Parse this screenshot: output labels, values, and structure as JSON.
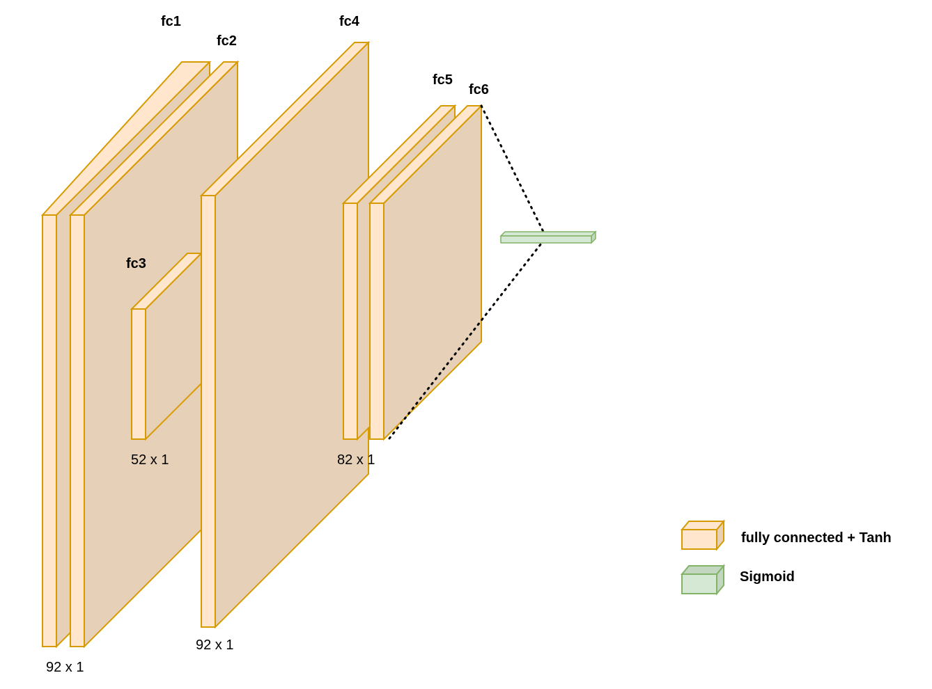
{
  "colors": {
    "fc_front": "#ffe6cc",
    "fc_side": "#e6d0b8",
    "fc_stroke": "#d79b00",
    "sigmoid_front": "#d5e8d4",
    "sigmoid_side": "#c2d6c0",
    "sigmoid_stroke": "#82b366",
    "connector": "#000000"
  },
  "layers": {
    "fc1": {
      "name": "fc1"
    },
    "fc2": {
      "name": "fc2"
    },
    "fc3": {
      "name": "fc3"
    },
    "fc4": {
      "name": "fc4"
    },
    "fc5": {
      "name": "fc5"
    },
    "fc6": {
      "name": "fc6"
    },
    "output": {
      "icon": "sigmoid-block"
    }
  },
  "dimensions": {
    "fc1_fc2": "92 x 1",
    "fc3": "52 x 1",
    "fc4": "92 x 1",
    "fc5_fc6": "82 x 1"
  },
  "legend": {
    "fc_label": "fully connected + Tanh",
    "fc_icon": "orange-box-icon",
    "sigmoid_label": "Sigmoid",
    "sigmoid_icon": "green-box-icon"
  }
}
